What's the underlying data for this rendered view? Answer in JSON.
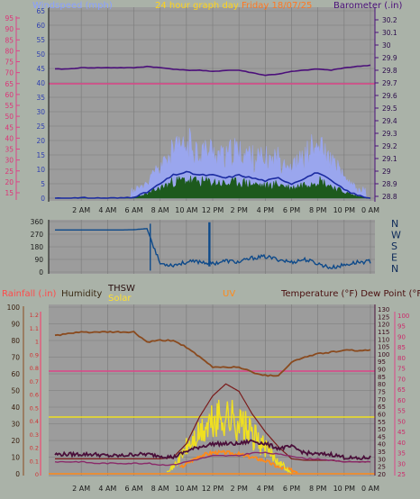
{
  "colors": {
    "bg": "#aab2a8",
    "plot": "#9c9c9c",
    "grid": "#7a7a7a",
    "wind_avg": "#1a2aa0",
    "wind_gust": "#9aa6ee",
    "wind_dark": "#1d5a1d",
    "barometer": "#4b0f7a",
    "pink": "#dd4488",
    "winddir": "#0e4a8a",
    "humidity": "#8a4a1e",
    "temp": "#4a0f3a",
    "dew": "#8a2a6a",
    "solar": "#f0e020",
    "uv": "#ff8a1a",
    "thsw": "#7a1a1a",
    "rain": "#ff3366",
    "title": "#ffd21a"
  },
  "header": {
    "windspeed": "Windspeed (mph)",
    "title": "24 hour graph day",
    "date": "Friday 18/07/25",
    "barometer": "Barometer (.in)"
  },
  "x_ticks": [
    "2 AM",
    "4 AM",
    "6 AM",
    "8 AM",
    "10 AM",
    "12 PM",
    "2 PM",
    "4 PM",
    "6 PM",
    "8 PM",
    "10 PM",
    "0 AM"
  ],
  "top": {
    "left_ticks": [
      "65",
      "60",
      "55",
      "50",
      "45",
      "40",
      "35",
      "30",
      "25",
      "20",
      "15",
      "10",
      "5",
      "0"
    ],
    "pink_ticks": [
      "95",
      "90",
      "85",
      "80",
      "75",
      "70",
      "65",
      "60",
      "55",
      "50",
      "45",
      "40",
      "35",
      "30",
      "25",
      "20",
      "15"
    ],
    "right_ticks": [
      "30.2",
      "30.1",
      "30",
      "29.9",
      "29.8",
      "29.7",
      "29.6",
      "29.5",
      "29.4",
      "29.3",
      "29.2",
      "29.1",
      "29",
      "28.9",
      "28.8"
    ]
  },
  "mid": {
    "left_ticks": [
      "360",
      "270",
      "180",
      "90",
      "0"
    ],
    "compass": [
      "N",
      "W",
      "S",
      "E",
      "N"
    ]
  },
  "bottom": {
    "labels": {
      "rain": "Rainfall (.in)",
      "humidity": "Humidity",
      "thsw": "THSW",
      "solar": "Solar",
      "uv": "UV",
      "temp": "Temperature (°F) Dew Point (°F)"
    },
    "hum_ticks": [
      "100",
      "90",
      "80",
      "70",
      "60",
      "50",
      "40",
      "30",
      "20",
      "10",
      "0"
    ],
    "rain_ticks": [
      "1.2",
      "1.1",
      "1",
      "0.9",
      "0.8",
      "0.7",
      "0.6",
      "0.5",
      "0.4",
      "0.3",
      "0.2",
      "0.1",
      "0"
    ],
    "temp_ticks": [
      "130",
      "125",
      "120",
      "115",
      "110",
      "105",
      "100",
      "95",
      "90",
      "85",
      "80",
      "75",
      "70",
      "65",
      "60",
      "55",
      "50",
      "45",
      "40",
      "35",
      "30",
      "25",
      "20"
    ],
    "pink_ticks": [
      "100",
      "95",
      "90",
      "85",
      "80",
      "75",
      "70",
      "65",
      "60",
      "55",
      "50",
      "45",
      "40",
      "35",
      "30",
      "25"
    ]
  },
  "chart_data": [
    {
      "type": "line",
      "title": "24 hour graph day",
      "x": [
        "0 AM",
        "1 AM",
        "2 AM",
        "3 AM",
        "4 AM",
        "5 AM",
        "6 AM",
        "7 AM",
        "8 AM",
        "9 AM",
        "10 AM",
        "11 AM",
        "12 PM",
        "1 PM",
        "2 PM",
        "3 PM",
        "4 PM",
        "5 PM",
        "6 PM",
        "7 PM",
        "8 PM",
        "9 PM",
        "10 PM",
        "11 PM",
        "0 AM"
      ],
      "series": [
        {
          "name": "Windspeed (mph)",
          "values": [
            0,
            0,
            0,
            0,
            0,
            0,
            0.5,
            2,
            5,
            8,
            9,
            8,
            8,
            7,
            8,
            7,
            6,
            7,
            5,
            7,
            9,
            6,
            3,
            1,
            0
          ]
        },
        {
          "name": "Barometer (.in)",
          "values": [
            29.81,
            29.81,
            29.82,
            29.82,
            29.82,
            29.82,
            29.82,
            29.83,
            29.82,
            29.81,
            29.8,
            29.8,
            29.79,
            29.8,
            29.8,
            29.78,
            29.76,
            29.77,
            29.79,
            29.8,
            29.81,
            29.8,
            29.82,
            29.83,
            29.84
          ]
        }
      ],
      "ylim": [
        0,
        65
      ],
      "y2lim": [
        28.8,
        30.2
      ]
    },
    {
      "type": "line",
      "x": [
        "0 AM",
        "1 AM",
        "2 AM",
        "3 AM",
        "4 AM",
        "5 AM",
        "6 AM",
        "7 AM",
        "8 AM",
        "9 AM",
        "10 AM",
        "11 AM",
        "12 PM",
        "1 PM",
        "2 PM",
        "3 PM",
        "4 PM",
        "5 PM",
        "6 PM",
        "7 PM",
        "8 PM",
        "9 PM",
        "10 PM",
        "11 PM",
        "0 AM"
      ],
      "series": [
        {
          "name": "Wind direction",
          "values": [
            300,
            300,
            300,
            300,
            300,
            300,
            302,
            310,
            60,
            50,
            70,
            75,
            60,
            80,
            70,
            100,
            110,
            90,
            70,
            90,
            60,
            30,
            50,
            70,
            75
          ]
        }
      ],
      "ylim": [
        0,
        360
      ]
    },
    {
      "type": "line",
      "x": [
        "0 AM",
        "1 AM",
        "2 AM",
        "3 AM",
        "4 AM",
        "5 AM",
        "6 AM",
        "7 AM",
        "8 AM",
        "9 AM",
        "10 AM",
        "11 AM",
        "12 PM",
        "1 PM",
        "2 PM",
        "3 PM",
        "4 PM",
        "5 PM",
        "6 PM",
        "7 PM",
        "8 PM",
        "9 PM",
        "10 PM",
        "11 PM",
        "0 AM"
      ],
      "series": [
        {
          "name": "Humidity",
          "values": [
            83,
            84,
            85,
            85,
            85,
            85,
            85,
            79,
            80,
            80,
            76,
            70,
            64,
            64,
            64,
            61,
            59,
            59,
            67,
            70,
            72,
            73,
            74,
            74,
            74
          ]
        },
        {
          "name": "Temperature (°F)",
          "values": [
            33,
            33,
            33,
            33,
            32,
            32,
            33,
            33,
            32,
            31,
            35,
            38,
            40,
            40,
            40,
            42,
            40,
            37,
            38,
            34,
            33,
            33,
            31,
            30,
            31
          ]
        },
        {
          "name": "Dew Point (°F)",
          "values": [
            28,
            28,
            28,
            27,
            27,
            27,
            27,
            27,
            26,
            26,
            28,
            30,
            32,
            32,
            32,
            34,
            34,
            33,
            32,
            30,
            30,
            29,
            28,
            28,
            28
          ]
        },
        {
          "name": "Solar",
          "values": [
            0,
            0,
            0,
            0,
            0,
            0,
            0,
            0,
            0,
            10,
            40,
            60,
            80,
            90,
            80,
            60,
            40,
            20,
            0,
            0,
            0,
            0,
            0,
            0,
            0
          ]
        },
        {
          "name": "UV",
          "values": [
            0,
            0,
            0,
            0,
            0,
            0,
            0,
            0,
            0,
            0,
            0.5,
            1,
            1.2,
            1.2,
            1.1,
            0.9,
            0.7,
            0.3,
            0.1,
            0,
            0,
            0,
            0,
            0,
            0
          ]
        },
        {
          "name": "THSW",
          "values": [
            30,
            30,
            30,
            30,
            30,
            30,
            30,
            30,
            30,
            31,
            40,
            58,
            72,
            80,
            75,
            60,
            48,
            38,
            30,
            29,
            29,
            29,
            28,
            28,
            28
          ]
        }
      ],
      "ylim": [
        0,
        100
      ]
    }
  ]
}
